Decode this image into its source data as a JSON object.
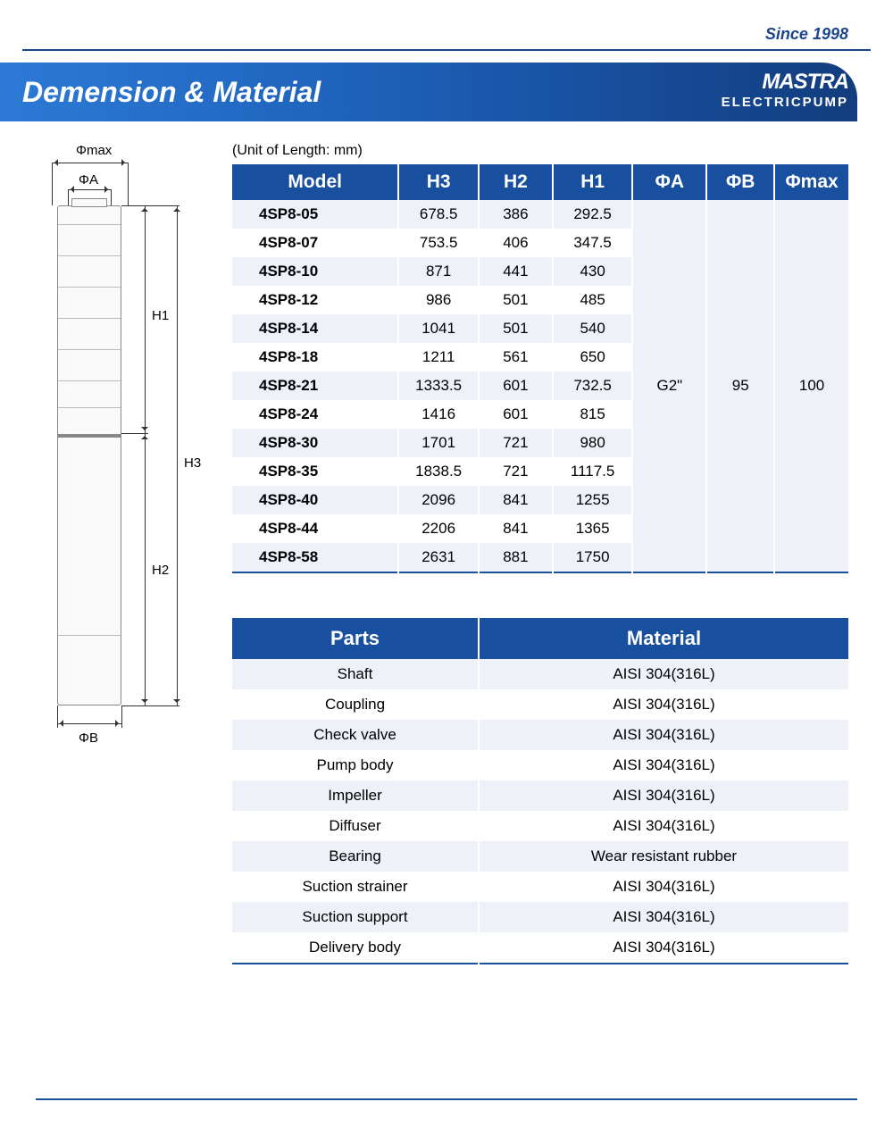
{
  "tagline": "Since 1998",
  "header_title": "Demension & Material",
  "brand_name": "MASTRA",
  "brand_sub": "ELECTRICPUMP",
  "unit_note": "(Unit of Length: mm)",
  "diagram": {
    "phi_max": "Φmax",
    "phi_a": "ΦA",
    "phi_b": "ΦB",
    "h1": "H1",
    "h2": "H2",
    "h3": "H3"
  },
  "dim_table": {
    "columns": [
      "Model",
      "H3",
      "H2",
      "H1",
      "ΦA",
      "ΦB",
      "Φmax"
    ],
    "col_widths": [
      "27%",
      "13%",
      "12%",
      "13%",
      "12%",
      "11%",
      "12%"
    ],
    "shared": {
      "phi_a": "G2\"",
      "phi_b": "95",
      "phi_max": "100"
    },
    "rows": [
      {
        "model": "4SP8-05",
        "h3": "678.5",
        "h2": "386",
        "h1": "292.5"
      },
      {
        "model": "4SP8-07",
        "h3": "753.5",
        "h2": "406",
        "h1": "347.5"
      },
      {
        "model": "4SP8-10",
        "h3": "871",
        "h2": "441",
        "h1": "430"
      },
      {
        "model": "4SP8-12",
        "h3": "986",
        "h2": "501",
        "h1": "485"
      },
      {
        "model": "4SP8-14",
        "h3": "1041",
        "h2": "501",
        "h1": "540"
      },
      {
        "model": "4SP8-18",
        "h3": "1211",
        "h2": "561",
        "h1": "650"
      },
      {
        "model": "4SP8-21",
        "h3": "1333.5",
        "h2": "601",
        "h1": "732.5"
      },
      {
        "model": "4SP8-24",
        "h3": "1416",
        "h2": "601",
        "h1": "815"
      },
      {
        "model": "4SP8-30",
        "h3": "1701",
        "h2": "721",
        "h1": "980"
      },
      {
        "model": "4SP8-35",
        "h3": "1838.5",
        "h2": "721",
        "h1": "1117.5"
      },
      {
        "model": "4SP8-40",
        "h3": "2096",
        "h2": "841",
        "h1": "1255"
      },
      {
        "model": "4SP8-44",
        "h3": "2206",
        "h2": "841",
        "h1": "1365"
      },
      {
        "model": "4SP8-58",
        "h3": "2631",
        "h2": "881",
        "h1": "1750"
      }
    ]
  },
  "mat_table": {
    "columns": [
      "Parts",
      "Material"
    ],
    "col_widths": [
      "40%",
      "60%"
    ],
    "rows": [
      {
        "part": "Shaft",
        "material": "AISI 304(316L)"
      },
      {
        "part": "Coupling",
        "material": "AISI 304(316L)"
      },
      {
        "part": "Check valve",
        "material": "AISI 304(316L)"
      },
      {
        "part": "Pump body",
        "material": "AISI 304(316L)"
      },
      {
        "part": "Impeller",
        "material": "AISI 304(316L)"
      },
      {
        "part": "Diffuser",
        "material": "AISI 304(316L)"
      },
      {
        "part": "Bearing",
        "material": "Wear resistant rubber"
      },
      {
        "part": "Suction strainer",
        "material": "AISI 304(316L)"
      },
      {
        "part": "Suction support",
        "material": "AISI 304(316L)"
      },
      {
        "part": "Delivery body",
        "material": "AISI 304(316L)"
      }
    ]
  },
  "colors": {
    "brand_blue": "#184f9e",
    "row_alt": "#eef2f8"
  }
}
